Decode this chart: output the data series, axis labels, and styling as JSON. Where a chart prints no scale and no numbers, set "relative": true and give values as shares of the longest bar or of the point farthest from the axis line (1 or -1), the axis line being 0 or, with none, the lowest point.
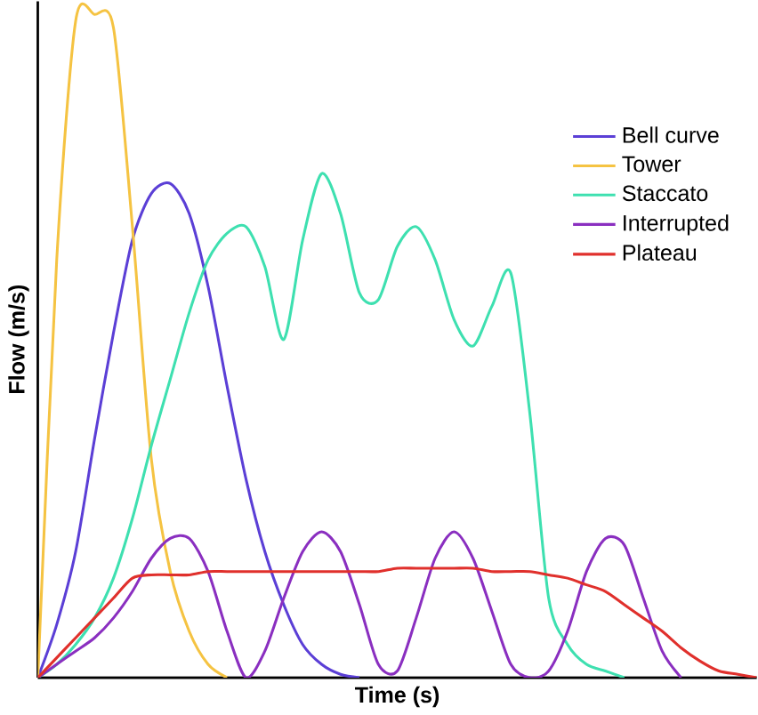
{
  "chart_data": {
    "type": "line",
    "xlabel": "Time (s)",
    "ylabel": "Flow (m/s)",
    "relative": true,
    "legend": "top right",
    "marker": "none",
    "line_style": "solid",
    "categories": [
      null,
      null,
      null,
      null,
      null,
      null,
      null,
      null,
      null,
      null,
      null,
      null,
      null,
      null,
      null,
      null,
      null,
      null,
      null,
      null,
      null,
      null,
      null,
      null,
      null,
      null,
      null,
      null,
      null,
      null,
      null,
      null,
      null,
      null,
      null,
      null,
      null,
      null,
      null
    ],
    "series": [
      {
        "name": "Bell curve",
        "color": "#5b3fd6",
        "values": [
          0,
          0.08,
          0.19,
          0.36,
          0.52,
          0.66,
          0.73,
          0.745,
          0.7,
          0.59,
          0.44,
          0.3,
          0.19,
          0.11,
          0.05,
          0.02,
          0.005,
          0,
          null,
          null,
          null,
          null,
          null,
          null,
          null,
          null,
          null,
          null,
          null,
          null,
          null,
          null,
          null,
          null,
          null,
          null,
          null,
          null,
          null
        ]
      },
      {
        "name": "Tower",
        "color": "#f5c342",
        "values": [
          0,
          0.63,
          0.99,
          1.0,
          0.98,
          0.68,
          0.33,
          0.16,
          0.07,
          0.02,
          0,
          null,
          null,
          null,
          null,
          null,
          null,
          null,
          null,
          null,
          null,
          null,
          null,
          null,
          null,
          null,
          null,
          null,
          null,
          null,
          null,
          null,
          null,
          null,
          null,
          null,
          null,
          null,
          null
        ]
      },
      {
        "name": "Staccato",
        "color": "#3ee0b0",
        "values": [
          0,
          0.02,
          0.05,
          0.09,
          0.15,
          0.24,
          0.35,
          0.45,
          0.55,
          0.63,
          0.67,
          0.68,
          0.62,
          0.51,
          0.66,
          0.76,
          0.7,
          0.58,
          0.57,
          0.65,
          0.68,
          0.63,
          0.54,
          0.5,
          0.56,
          0.61,
          0.4,
          0.12,
          0.05,
          0.02,
          0.01,
          0,
          null,
          null,
          null,
          null,
          null,
          null,
          null
        ]
      },
      {
        "name": "Interrupted",
        "color": "#8a2fc0",
        "values": [
          0,
          0.02,
          0.04,
          0.06,
          0.09,
          0.13,
          0.18,
          0.21,
          0.21,
          0.16,
          0.07,
          0,
          0.04,
          0.12,
          0.19,
          0.22,
          0.19,
          0.11,
          0.02,
          0.01,
          0.09,
          0.18,
          0.22,
          0.18,
          0.1,
          0.02,
          0,
          0.01,
          0.07,
          0.16,
          0.21,
          0.2,
          0.12,
          0.04,
          0,
          null,
          null,
          null,
          null
        ]
      },
      {
        "name": "Plateau",
        "color": "#e0302c",
        "values": [
          0,
          0.03,
          0.06,
          0.09,
          0.12,
          0.15,
          0.155,
          0.155,
          0.155,
          0.16,
          0.16,
          0.16,
          0.16,
          0.16,
          0.16,
          0.16,
          0.16,
          0.16,
          0.16,
          0.165,
          0.165,
          0.165,
          0.165,
          0.165,
          0.16,
          0.16,
          0.16,
          0.155,
          0.15,
          0.14,
          0.13,
          0.11,
          0.09,
          0.07,
          0.045,
          0.025,
          0.01,
          0.005,
          0
        ]
      }
    ]
  }
}
